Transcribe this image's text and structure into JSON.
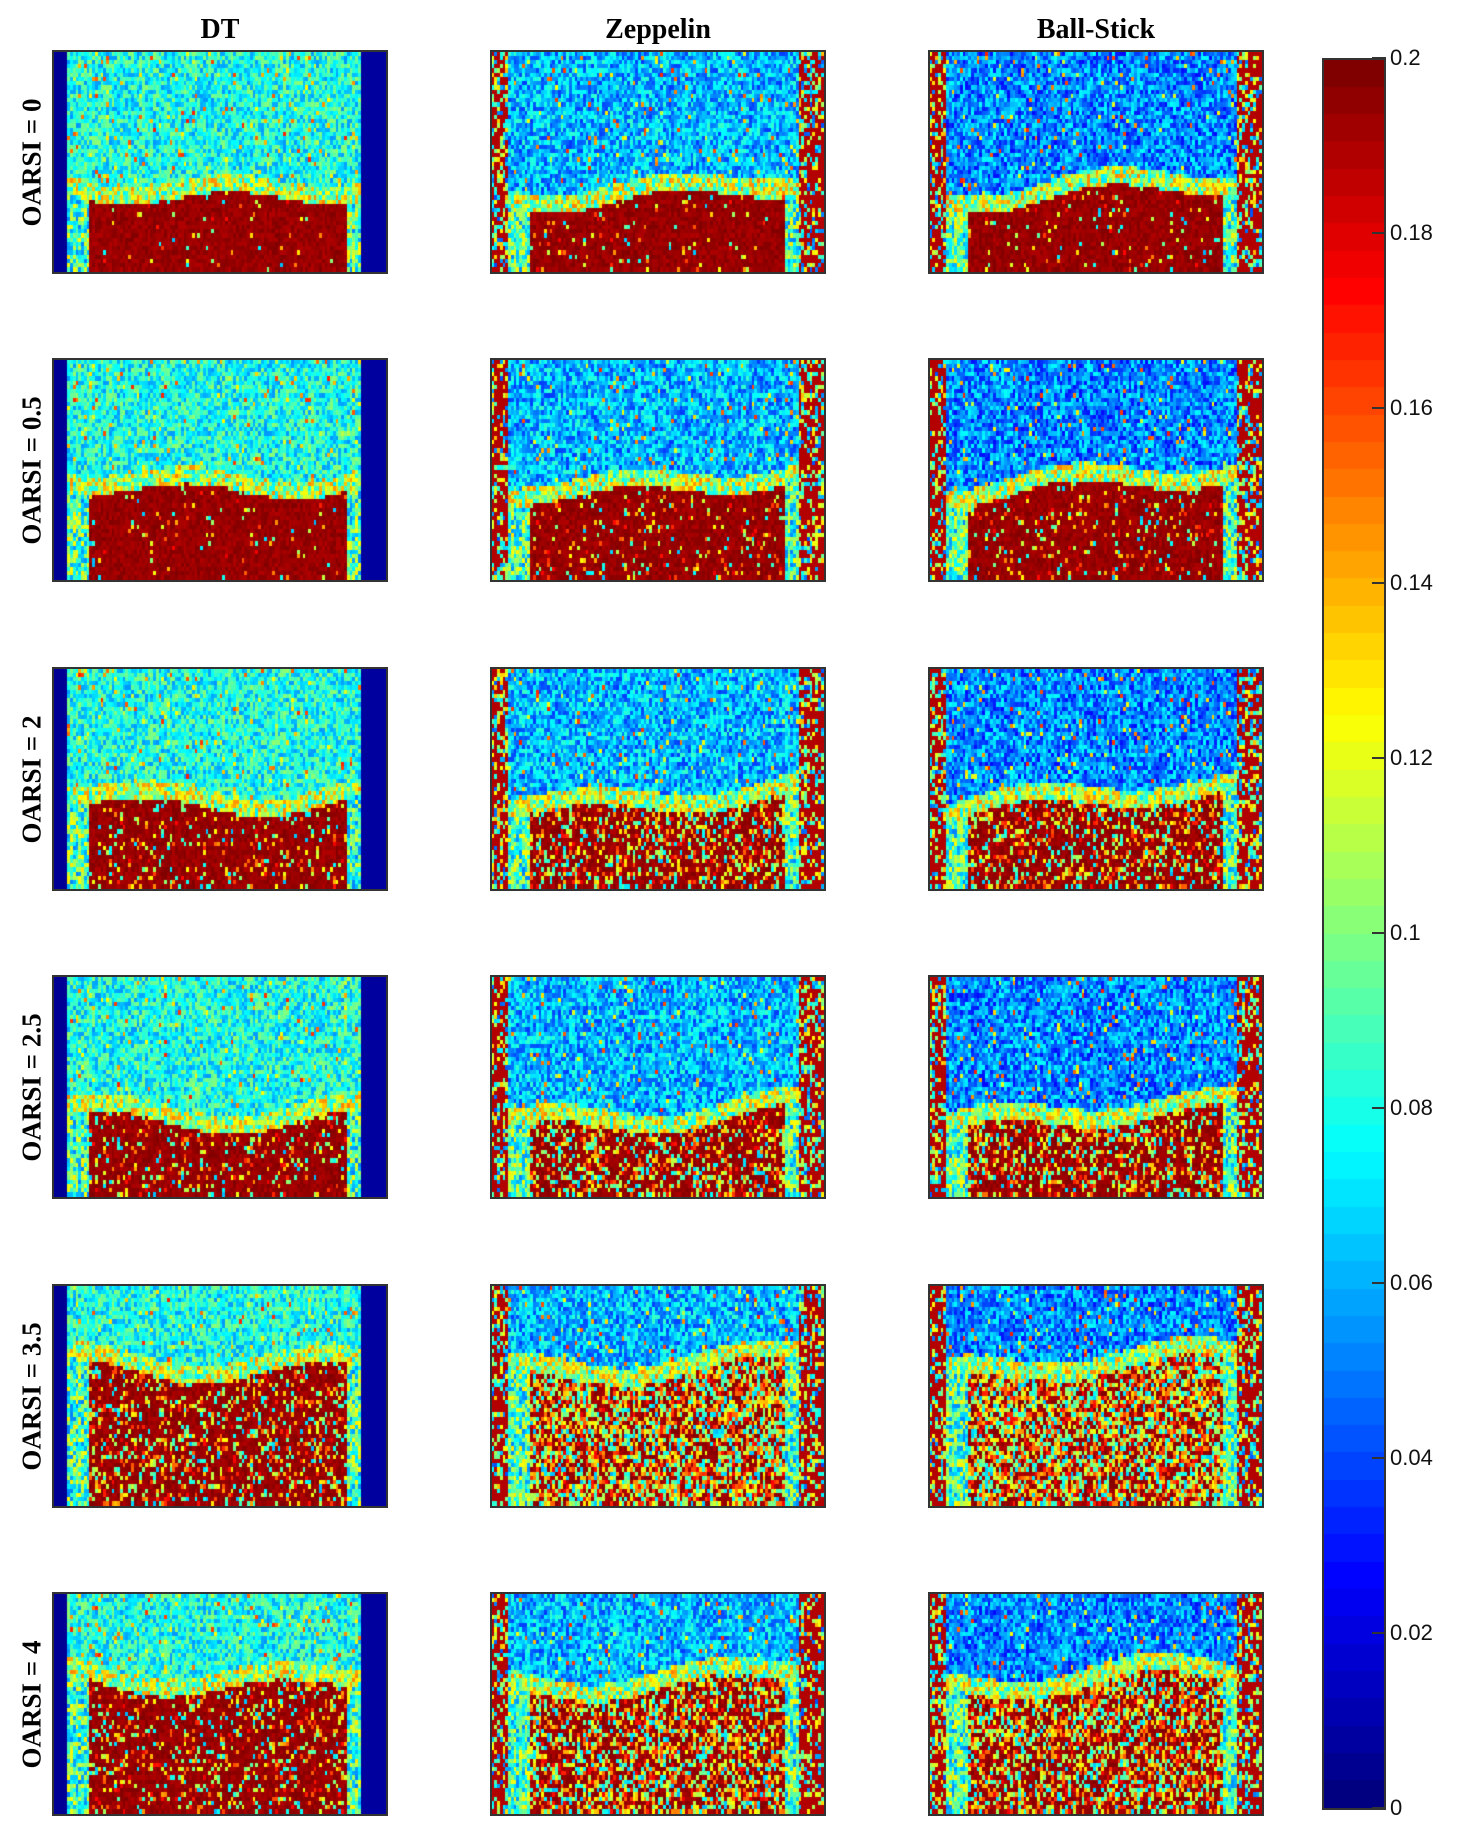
{
  "chart_data": {
    "type": "heatmap",
    "columns": [
      "DT",
      "Zeppelin",
      "Ball-Stick"
    ],
    "rows": [
      "OARSI = 0",
      "OARSI = 0.5",
      "OARSI = 2",
      "OARSI = 2.5",
      "OARSI = 3.5",
      "OARSI = 4"
    ],
    "colorbar": {
      "min": 0,
      "max": 0.2,
      "ticks": [
        "0",
        "0.02",
        "0.04",
        "0.06",
        "0.08",
        "0.1",
        "0.12",
        "0.14",
        "0.16",
        "0.18",
        "0.2"
      ],
      "colormap": "jet"
    }
  }
}
